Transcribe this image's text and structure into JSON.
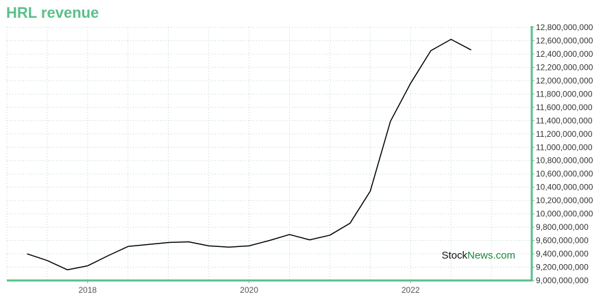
{
  "chart_data": {
    "type": "line",
    "title": "HRL revenue",
    "xlabel": "",
    "ylabel": "",
    "xlim": [
      2017.0,
      2023.5
    ],
    "ylim": [
      9000000000,
      12800000000
    ],
    "x_ticks": [
      2018,
      2020,
      2022
    ],
    "y_ticks": [
      9000000000,
      9200000000,
      9400000000,
      9600000000,
      9800000000,
      10000000000,
      10200000000,
      10400000000,
      10600000000,
      10800000000,
      11000000000,
      11200000000,
      11400000000,
      11600000000,
      11800000000,
      12000000000,
      12200000000,
      12400000000,
      12600000000,
      12800000000
    ],
    "grid": true,
    "y_axis_position": "right",
    "line_color": "#000000",
    "accent_color": "#5bbf8a",
    "series": [
      {
        "x": [
          2017.25,
          2017.5,
          2017.75,
          2018.0,
          2018.25,
          2018.5,
          2018.75,
          2019.0,
          2019.25,
          2019.5,
          2019.75,
          2020.0,
          2020.25,
          2020.5,
          2020.75,
          2021.0,
          2021.25,
          2021.5,
          2021.75,
          2022.0,
          2022.25,
          2022.5,
          2022.75
        ],
        "values": [
          9400000000,
          9300000000,
          9160000000,
          9220000000,
          9370000000,
          9510000000,
          9540000000,
          9570000000,
          9580000000,
          9520000000,
          9500000000,
          9520000000,
          9600000000,
          9690000000,
          9610000000,
          9680000000,
          9860000000,
          10340000000,
          11390000000,
          11960000000,
          12450000000,
          12620000000,
          12460000000
        ]
      }
    ]
  },
  "watermark": {
    "part1": "Stock",
    "part2": "News.com"
  }
}
